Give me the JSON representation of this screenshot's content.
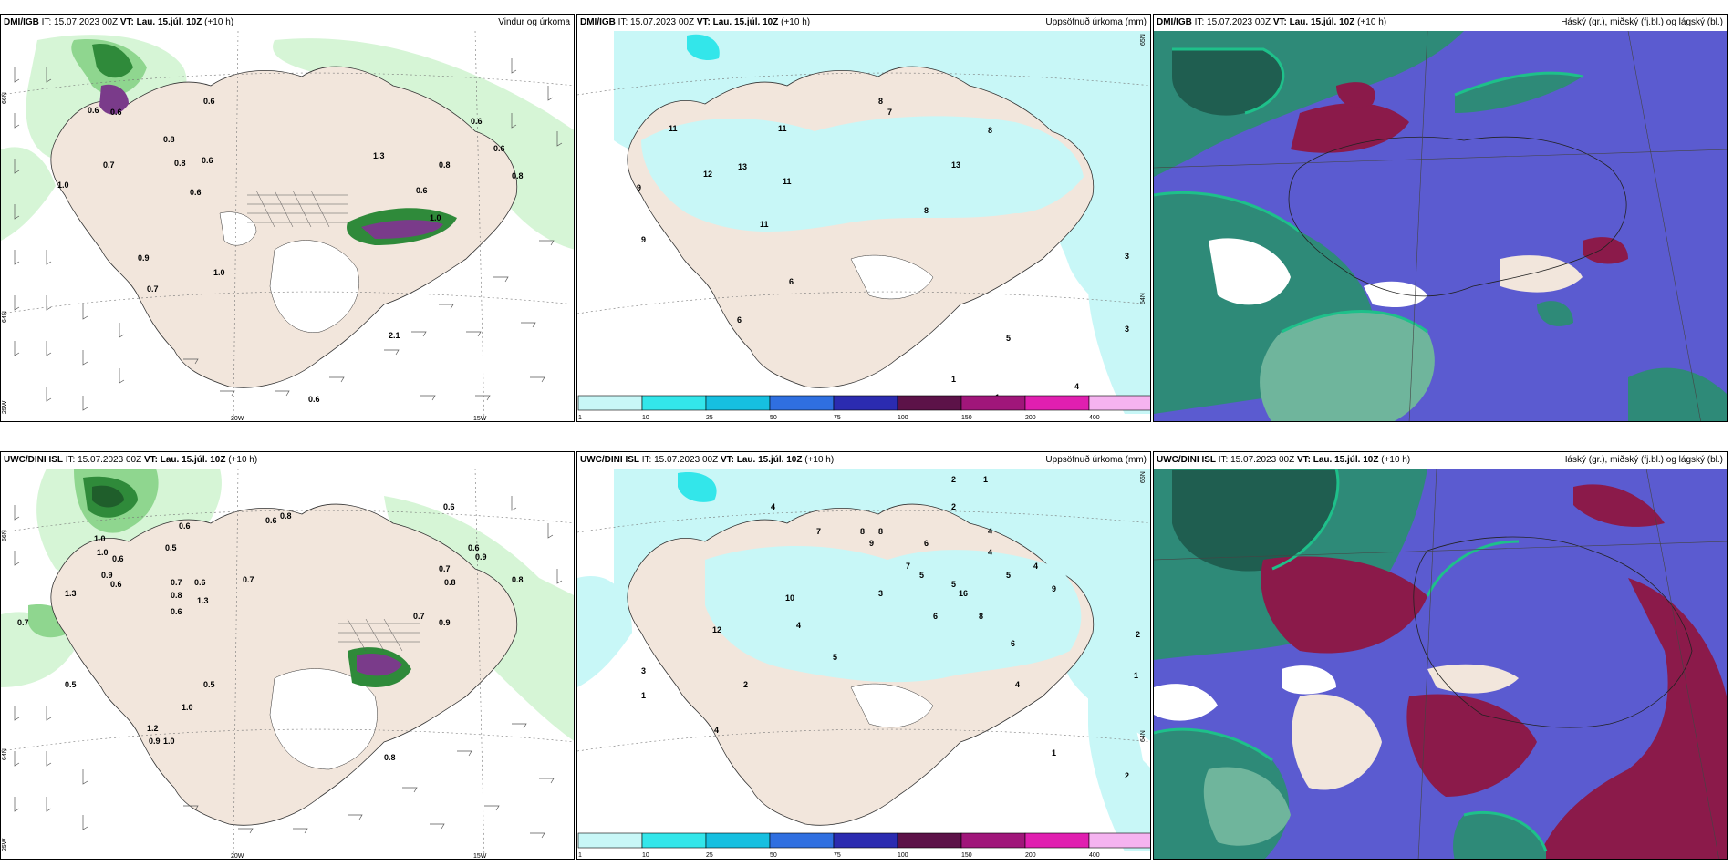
{
  "colors": {
    "land": "#f2e6dc",
    "sea_white": "#ffffff",
    "precip_light": "#d6f5d6",
    "precip_mid": "#8fd68f",
    "precip_dark": "#2f8a3a",
    "precip_vdark": "#1f5e2b",
    "accum_light": "#c8f7f7",
    "accum_cyan": "#33e6ea",
    "cloud_blue": "#5b5bd0",
    "cloud_teal": "#2e8a78",
    "cloud_green": "#1ec08a",
    "cloud_red": "#8b1a4a",
    "snow_purple": "#7a3b8a",
    "pink": "#e88ee8"
  },
  "panels": [
    {
      "id": "top-left",
      "model": "DMI/IGB",
      "it_label": "IT:",
      "it_value": "15.07.2023 00Z",
      "vt_label": "VT:",
      "vt_value": "Lau. 15.júl. 10Z",
      "lead": "(+10 h)",
      "product": "Vindur og úrkoma",
      "axis": {
        "lat_top": "66N",
        "lat_mid": "64N",
        "lat_bot": "25W",
        "lon_a": "20W",
        "lon_b": "15W"
      },
      "values": [
        "0.6",
        "0.6",
        "0.6",
        "0.8",
        "0.7",
        "0.6",
        "0.8",
        "0.6",
        "0.6",
        "0.8",
        "0.6",
        "0.8",
        "0.9",
        "1.0",
        "0.7",
        "0.6",
        "1.0",
        "1.0",
        "1.3",
        "2.1",
        "0.6"
      ]
    },
    {
      "id": "top-middle",
      "model": "DMI/IGB",
      "it_label": "IT:",
      "it_value": "15.07.2023 00Z",
      "vt_label": "VT:",
      "vt_value": "Lau. 15.júl. 10Z",
      "lead": "(+10 h)",
      "product": "Uppsöfnuð úrkoma (mm)",
      "axis": {
        "lat_top": "65N",
        "lat_mid": "64N"
      },
      "values": [
        "11",
        "9",
        "11",
        "13",
        "11",
        "11",
        "9",
        "8",
        "13",
        "8",
        "7",
        "8",
        "3",
        "6",
        "3",
        "4",
        "1",
        "1",
        "5",
        "12",
        "6"
      ],
      "colorbar": [
        "1",
        "10",
        "25",
        "50",
        "75",
        "100",
        "150",
        "200",
        "400"
      ]
    },
    {
      "id": "top-right",
      "model": "DMI/IGB",
      "it_label": "IT:",
      "it_value": "15.07.2023 00Z",
      "vt_label": "VT:",
      "vt_value": "Lau. 15.júl. 10Z",
      "lead": "(+10 h)",
      "product": "Háský (gr.), miðský (fj.bl.) og lágský (bl.)"
    },
    {
      "id": "bottom-left",
      "model": "UWC/DINI ISL",
      "it_label": "IT:",
      "it_value": "15.07.2023 00Z",
      "vt_label": "VT:",
      "vt_value": "Lau. 15.júl. 10Z",
      "lead": "(+10 h)",
      "product": "",
      "axis": {
        "lat_top": "66N",
        "lat_mid": "64N",
        "lat_bot": "25W",
        "lon_a": "20W",
        "lon_b": "15W"
      },
      "values": [
        "0.7",
        "0.6",
        "0.6",
        "0.8",
        "0.6",
        "0.5",
        "1.0",
        "0.9",
        "0.6",
        "0.7",
        "0.8",
        "0.6",
        "0.7",
        "0.5",
        "1.0",
        "0.9",
        "0.7",
        "0.6",
        "0.9",
        "0.6",
        "0.8",
        "0.7",
        "0.8",
        "0.5",
        "1.3",
        "0.9",
        "1.0",
        "1.2",
        "0.6",
        "0.8",
        "1.3",
        "1.0"
      ]
    },
    {
      "id": "bottom-middle",
      "model": "UWC/DINI ISL",
      "it_label": "IT:",
      "it_value": "15.07.2023 00Z",
      "vt_label": "VT:",
      "vt_value": "Lau. 15.júl. 10Z",
      "lead": "(+10 h)",
      "product": "Uppsöfnuð úrkoma (mm)",
      "axis": {
        "lat_top": "65N",
        "lat_mid": "64N"
      },
      "values": [
        "2",
        "1",
        "2",
        "4",
        "7",
        "8",
        "8",
        "9",
        "6",
        "4",
        "4",
        "5",
        "3",
        "5",
        "6",
        "7",
        "8",
        "16",
        "5",
        "4",
        "9",
        "6",
        "12",
        "10",
        "4",
        "2",
        "5",
        "3",
        "1",
        "2",
        "4",
        "1",
        "1",
        "4",
        "2"
      ],
      "colorbar": [
        "1",
        "10",
        "25",
        "50",
        "75",
        "100",
        "150",
        "200",
        "400"
      ]
    },
    {
      "id": "bottom-right",
      "model": "UWC/DINI ISL",
      "it_label": "IT:",
      "it_value": "15.07.2023 00Z",
      "vt_label": "VT:",
      "vt_value": "Lau. 15.júl. 10Z",
      "lead": "(+10 h)",
      "product": "Háský (gr.), miðský (fj.bl.) og lágský (bl.)"
    }
  ]
}
